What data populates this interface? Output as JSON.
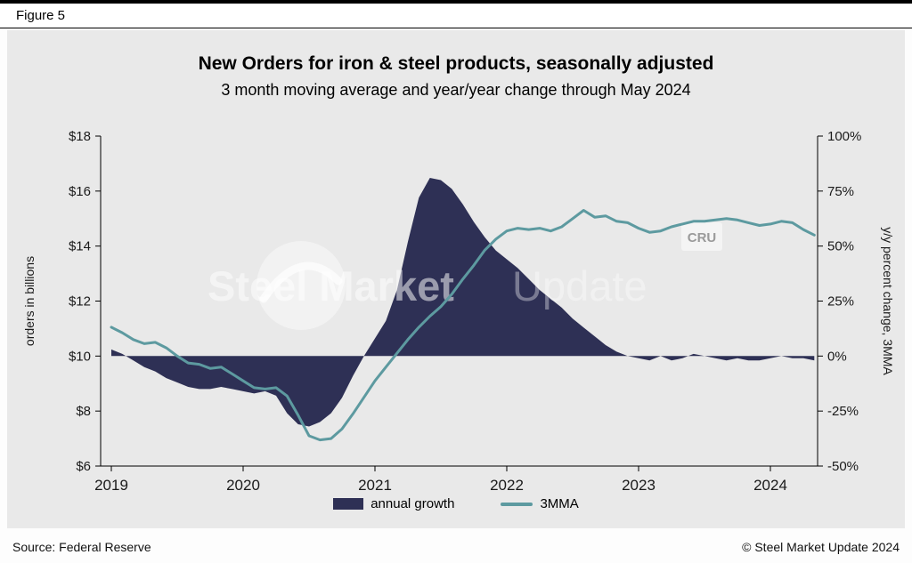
{
  "figure_label": "Figure 5",
  "watermark": {
    "brand_bold": "Steel Market",
    "brand_light": "Update",
    "badge": "CRU"
  },
  "footer": {
    "source": "Source: Federal Reserve",
    "copyright": "© Steel Market Update 2024"
  },
  "chart_data": {
    "type": "area+line dual-axis combo, monthly data Jan 2019 – May 2024",
    "title": "New Orders for iron & steel products, seasonally adjusted",
    "subtitle": "3 month moving average and year/year change through May 2024",
    "x_start": "2019-01",
    "x_end": "2024-05",
    "x_year_labels": [
      "2019",
      "2020",
      "2021",
      "2022",
      "2023",
      "2024"
    ],
    "grid": "off",
    "legend_position": "bottom-center",
    "left_axis": {
      "label": "orders in billions",
      "min": 6,
      "max": 18,
      "ticks": [
        {
          "v": 6,
          "label": "$6"
        },
        {
          "v": 8,
          "label": "$8"
        },
        {
          "v": 10,
          "label": "$10"
        },
        {
          "v": 12,
          "label": "$12"
        },
        {
          "v": 14,
          "label": "$14"
        },
        {
          "v": 16,
          "label": "$16"
        },
        {
          "v": 18,
          "label": "$18"
        }
      ]
    },
    "right_axis": {
      "label": "y/y percent change, 3MMA",
      "min": -50,
      "max": 100,
      "ticks": [
        {
          "v": -50,
          "label": "-50%"
        },
        {
          "v": -25,
          "label": "-25%"
        },
        {
          "v": 0,
          "label": "0%"
        },
        {
          "v": 25,
          "label": "25%"
        },
        {
          "v": 50,
          "label": "50%"
        },
        {
          "v": 75,
          "label": "75%"
        },
        {
          "v": 100,
          "label": "100%"
        }
      ]
    },
    "series": [
      {
        "name": "annual growth",
        "type": "area",
        "axis": "right",
        "unit": "percent",
        "color": "#2e3055",
        "values": [
          3,
          1,
          -2,
          -5,
          -7,
          -10,
          -12,
          -14,
          -15,
          -15,
          -14,
          -15,
          -16,
          -17,
          -16,
          -18,
          -26,
          -31,
          -32,
          -30,
          -26,
          -19,
          -9,
          0,
          8,
          16,
          30,
          52,
          72,
          81,
          80,
          76,
          69,
          61,
          54,
          48,
          44,
          40,
          35,
          30,
          26,
          22,
          17,
          13,
          9,
          5,
          2,
          0,
          -1,
          -2,
          0,
          -2,
          -1,
          1,
          0,
          -1,
          -2,
          -1,
          -2,
          -2,
          -1,
          0,
          -1,
          -1,
          -2
        ]
      },
      {
        "name": "3MMA",
        "type": "line",
        "axis": "left",
        "unit": "billions of dollars",
        "color": "#5d9aa0",
        "values": [
          11.05,
          10.85,
          10.6,
          10.45,
          10.5,
          10.3,
          10.0,
          9.75,
          9.7,
          9.55,
          9.6,
          9.35,
          9.1,
          8.85,
          8.8,
          8.85,
          8.55,
          7.85,
          7.1,
          6.95,
          7.0,
          7.35,
          7.9,
          8.5,
          9.1,
          9.6,
          10.1,
          10.6,
          11.05,
          11.45,
          11.8,
          12.25,
          12.8,
          13.3,
          13.85,
          14.25,
          14.55,
          14.65,
          14.6,
          14.65,
          14.55,
          14.7,
          15.0,
          15.3,
          15.05,
          15.1,
          14.9,
          14.85,
          14.65,
          14.5,
          14.55,
          14.7,
          14.8,
          14.9,
          14.9,
          14.95,
          15.0,
          14.95,
          14.85,
          14.75,
          14.8,
          14.9,
          14.85,
          14.6,
          14.4
        ]
      }
    ]
  }
}
